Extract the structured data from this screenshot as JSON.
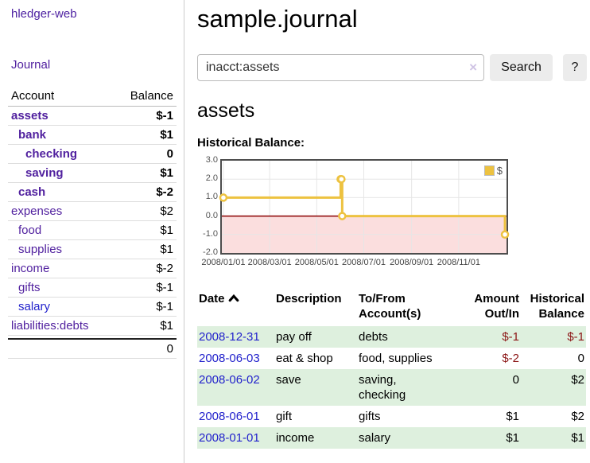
{
  "app": {
    "brand": "hledger-web",
    "nav_journal": "Journal"
  },
  "colors": {
    "link_purple": "#51219f",
    "link_blue": "#2222cc",
    "negative_strong": "#8b1414",
    "negative_soft": "#bd6a6a",
    "row_stripe_green": "#def0de",
    "series_gold": "#edc240"
  },
  "sidebar": {
    "columns": {
      "account": "Account",
      "balance": "Balance"
    },
    "rows": [
      {
        "account": "assets",
        "balance": "$-1",
        "depth": 0,
        "bold": true,
        "balance_tone": "neg",
        "link_class": "purple"
      },
      {
        "account": "bank",
        "balance": "$1",
        "depth": 1,
        "bold": true,
        "balance_tone": "",
        "link_class": "purple"
      },
      {
        "account": "checking",
        "balance": "0",
        "depth": 2,
        "bold": true,
        "balance_tone": "",
        "link_class": "purple"
      },
      {
        "account": "saving",
        "balance": "$1",
        "depth": 2,
        "bold": true,
        "balance_tone": "",
        "link_class": "purple"
      },
      {
        "account": "cash",
        "balance": "$-2",
        "depth": 1,
        "bold": true,
        "balance_tone": "neg",
        "link_class": "purple"
      },
      {
        "account": "expenses",
        "balance": "$2",
        "depth": 0,
        "bold": false,
        "balance_tone": "",
        "link_class": "purple"
      },
      {
        "account": "food",
        "balance": "$1",
        "depth": 1,
        "bold": false,
        "balance_tone": "",
        "link_class": "purple"
      },
      {
        "account": "supplies",
        "balance": "$1",
        "depth": 1,
        "bold": false,
        "balance_tone": "",
        "link_class": "purple"
      },
      {
        "account": "income",
        "balance": "$-2",
        "depth": 0,
        "bold": false,
        "balance_tone": "neg-soft",
        "link_class": "purple"
      },
      {
        "account": "gifts",
        "balance": "$-1",
        "depth": 1,
        "bold": false,
        "balance_tone": "neg-soft",
        "link_class": "purple"
      },
      {
        "account": "salary",
        "balance": "$-1",
        "depth": 1,
        "bold": false,
        "balance_tone": "neg-soft",
        "link_class": "blue"
      },
      {
        "account": "liabilities:debts",
        "balance": "$1",
        "depth": 0,
        "bold": false,
        "balance_tone": "",
        "link_class": "purple"
      }
    ],
    "total": "0"
  },
  "header": {
    "title": "sample.journal"
  },
  "search": {
    "value": "inacct:assets",
    "clear_icon": "×",
    "button_label": "Search",
    "help_label": "?"
  },
  "account_page": {
    "heading": "assets"
  },
  "chart_data": {
    "type": "line",
    "step": true,
    "title": "Historical Balance:",
    "series": [
      {
        "name": "$",
        "color": "#edc240",
        "points": [
          [
            "2008/01/01",
            1
          ],
          [
            "2008/06/01",
            2
          ],
          [
            "2008/06/02",
            2
          ],
          [
            "2008/06/03",
            0
          ],
          [
            "2008/12/31",
            -1
          ]
        ]
      }
    ],
    "x_ticks": [
      "2008/01/01",
      "2008/03/01",
      "2008/05/01",
      "2008/07/01",
      "2008/09/01",
      "2008/11/01"
    ],
    "y_ticks": [
      3,
      2,
      1,
      0,
      -1,
      -2
    ],
    "y_tick_labels": [
      "3.0",
      "2.0",
      "1.0",
      "0.0",
      "-1.0",
      "-2.0"
    ],
    "ylim": [
      -2,
      3
    ],
    "xlim": [
      "2007/12/30",
      "2009/01/02"
    ],
    "grid": true,
    "grid_color": "#e6e6e6",
    "legend_position": "top-right",
    "negative_region_color": "#fbdede",
    "zero_line_color": "#8b0000"
  },
  "register": {
    "columns": [
      {
        "key": "date",
        "label": "Date",
        "sorted": true,
        "align": "left"
      },
      {
        "key": "description",
        "label": "Description",
        "sorted": false,
        "align": "left"
      },
      {
        "key": "accounts",
        "label": "To/From\nAccount(s)",
        "sorted": false,
        "align": "left"
      },
      {
        "key": "amount",
        "label": "Amount\nOut/In",
        "sorted": false,
        "align": "right"
      },
      {
        "key": "balance",
        "label": "Historical\nBalance",
        "sorted": false,
        "align": "right"
      }
    ],
    "rows": [
      {
        "date": "2008-12-31",
        "description": "pay off",
        "accounts": "debts",
        "amount": "$-1",
        "balance": "$-1"
      },
      {
        "date": "2008-06-03",
        "description": "eat & shop",
        "accounts": "food, supplies",
        "amount": "$-2",
        "balance": "0"
      },
      {
        "date": "2008-06-02",
        "description": "save",
        "accounts": "saving,\nchecking",
        "amount": "0",
        "balance": "$2"
      },
      {
        "date": "2008-06-01",
        "description": "gift",
        "accounts": "gifts",
        "amount": "$1",
        "balance": "$2"
      },
      {
        "date": "2008-01-01",
        "description": "income",
        "accounts": "salary",
        "amount": "$1",
        "balance": "$1"
      }
    ]
  }
}
